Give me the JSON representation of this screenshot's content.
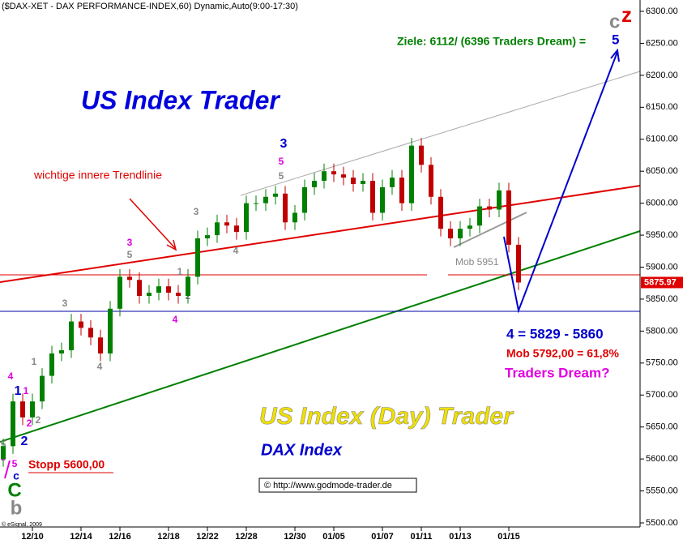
{
  "chart_data": {
    "type": "candlestick",
    "title": "($DAX-XET - DAX PERFORMANCE-INDEX,60) Dynamic,Auto(9:00-17:30)",
    "up_color": "#008000",
    "down_color": "#c00000",
    "categories": [
      null,
      null,
      null,
      "12/10",
      null,
      null,
      null,
      null,
      "12/14",
      null,
      null,
      null,
      "12/16",
      null,
      null,
      null,
      null,
      "12/18",
      null,
      null,
      null,
      "12/22",
      null,
      null,
      null,
      "12/28",
      null,
      null,
      null,
      null,
      "12/30",
      null,
      null,
      null,
      "01/05",
      null,
      null,
      null,
      null,
      "01/07",
      null,
      null,
      null,
      "01/11",
      null,
      null,
      null,
      "01/13",
      null,
      null,
      null,
      null,
      "01/15",
      null
    ],
    "open": [
      5600,
      5620,
      5690,
      5665,
      5690,
      5730,
      5765,
      5770,
      5815,
      5805,
      5790,
      5765,
      5835,
      5885,
      5880,
      5855,
      5860,
      5870,
      5860,
      5855,
      5885,
      5945,
      5950,
      5970,
      5965,
      5955,
      6000,
      6000,
      6010,
      6015,
      5970,
      5985,
      6025,
      6035,
      6050,
      6045,
      6040,
      6030,
      6035,
      5985,
      6025,
      6040,
      6000,
      6090,
      6060,
      6010,
      5960,
      5945,
      5960,
      5965,
      5995,
      5990,
      6020,
      5935
    ],
    "high": [
      5632,
      5702,
      5702,
      5702,
      5742,
      5777,
      5782,
      5827,
      5827,
      5817,
      5802,
      5847,
      5897,
      5897,
      5892,
      5872,
      5882,
      5882,
      5872,
      5897,
      5957,
      5962,
      5982,
      5982,
      5977,
      6012,
      6012,
      6022,
      6027,
      6027,
      5997,
      6037,
      6047,
      6062,
      6062,
      6057,
      6052,
      6047,
      6047,
      6037,
      6052,
      6052,
      6102,
      6102,
      6072,
      6022,
      5972,
      5972,
      5977,
      6007,
      6007,
      6032,
      6032,
      5947
    ],
    "low": [
      5588,
      5608,
      5653,
      5653,
      5678,
      5718,
      5753,
      5758,
      5793,
      5778,
      5753,
      5753,
      5823,
      5868,
      5843,
      5843,
      5848,
      5848,
      5843,
      5843,
      5873,
      5933,
      5938,
      5953,
      5943,
      5943,
      5988,
      5988,
      5998,
      5958,
      5958,
      5973,
      6013,
      6023,
      6033,
      6028,
      6018,
      6018,
      5973,
      5973,
      6013,
      5988,
      5988,
      6048,
      5998,
      5948,
      5933,
      5933,
      5948,
      5953,
      5978,
      5978,
      5923,
      5864
    ],
    "close": [
      5620,
      5690,
      5665,
      5690,
      5730,
      5765,
      5770,
      5815,
      5805,
      5790,
      5765,
      5835,
      5885,
      5880,
      5855,
      5860,
      5870,
      5860,
      5855,
      5885,
      5945,
      5950,
      5970,
      5965,
      5955,
      6000,
      6000,
      6010,
      6015,
      5970,
      5985,
      6025,
      6035,
      6050,
      6045,
      6040,
      6030,
      6035,
      5985,
      6025,
      6040,
      6000,
      6090,
      6060,
      6010,
      5960,
      5945,
      5960,
      5965,
      5995,
      5990,
      6020,
      5935,
      5875.97
    ],
    "ylim": [
      5500,
      6300
    ],
    "yticks": [
      {
        "value": 5500,
        "label": "5500.00"
      },
      {
        "value": 5550,
        "label": "5550.00"
      },
      {
        "value": 5600,
        "label": "5600.00"
      },
      {
        "value": 5650,
        "label": "5650.00"
      },
      {
        "value": 5700,
        "label": "5700.00"
      },
      {
        "value": 5750,
        "label": "5750.00"
      },
      {
        "value": 5800,
        "label": "5800.00"
      },
      {
        "value": 5850,
        "label": "5850.00"
      },
      {
        "value": 5900,
        "label": "5900.00"
      },
      {
        "value": 5950,
        "label": "5950.00"
      },
      {
        "value": 6000,
        "label": "6000.00"
      },
      {
        "value": 6050,
        "label": "6050.00"
      },
      {
        "value": 6100,
        "label": "6100.00"
      },
      {
        "value": 6150,
        "label": "6150.00"
      },
      {
        "value": 6200,
        "label": "6200.00"
      },
      {
        "value": 6250,
        "label": "6250.00"
      },
      {
        "value": 6300,
        "label": "6300.00"
      }
    ],
    "annotations": [
      "US Index Trader",
      "Ziele: 6112/ (6396 Traders Dream) =",
      "5",
      "wichtige innere Trendlinie",
      "Mob 5951",
      "4 = 5829 - 5860",
      "Mob 5792,00 = 61,8%",
      "Traders Dream?",
      "US Index (Day) Trader",
      "DAX Index",
      "© http://www.godmode-trader.de",
      "Stopp 5600,00",
      "© eSignal, 2009",
      "c",
      "z"
    ],
    "wave_labels": [
      "3",
      "5",
      "5",
      "3",
      "5",
      "3",
      "4",
      "1",
      "2",
      "4",
      "3",
      "4",
      "1",
      "4",
      "1",
      "1",
      "2",
      "2",
      "2",
      "5",
      "3",
      "5",
      "c",
      "C",
      "b"
    ]
  }
}
